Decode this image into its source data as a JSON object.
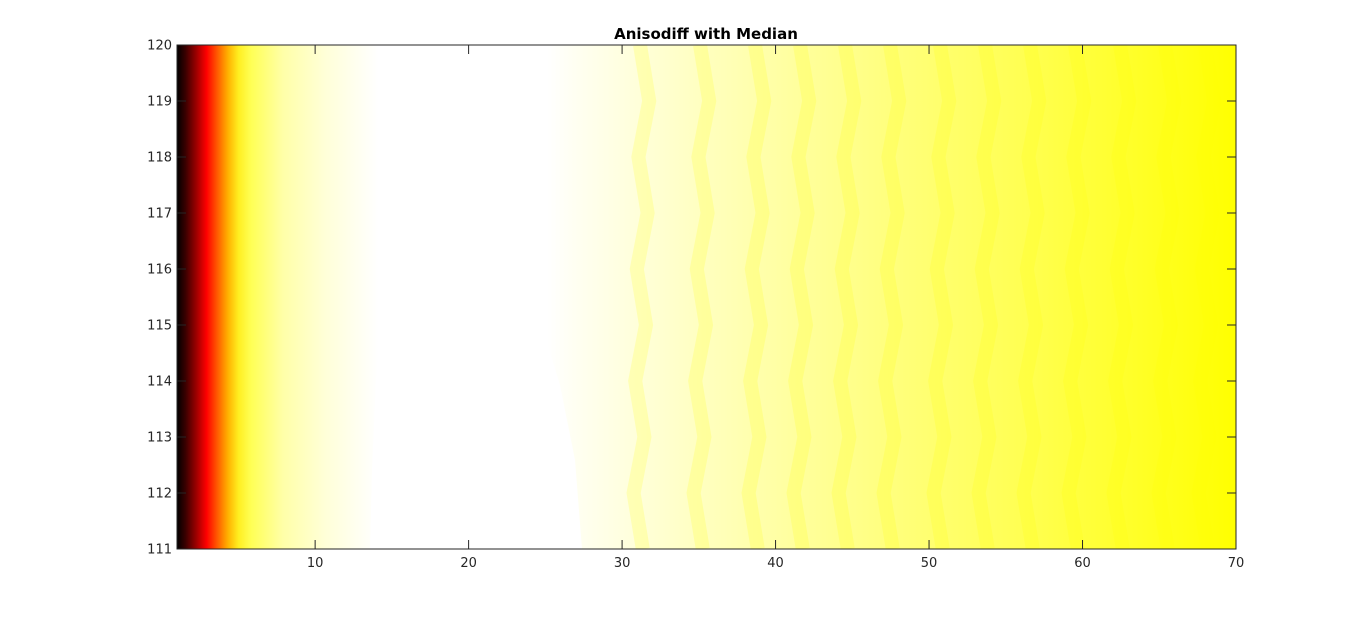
{
  "chart_data": {
    "type": "heatmap",
    "title": "Anisodiff with Median",
    "xlabel": "",
    "ylabel": "",
    "xlim": [
      1,
      70
    ],
    "ylim": [
      111,
      120
    ],
    "x_ticks": [
      10,
      20,
      30,
      40,
      50,
      60,
      70
    ],
    "y_ticks": [
      111,
      112,
      113,
      114,
      115,
      116,
      117,
      118,
      119,
      120
    ],
    "colormap": "hot",
    "grid": false,
    "legend": "none",
    "colors": {
      "black": "#000000",
      "red": "#ff0000",
      "yellow": "#ffff00",
      "white": "#ffffff",
      "axis": "#262626"
    }
  }
}
